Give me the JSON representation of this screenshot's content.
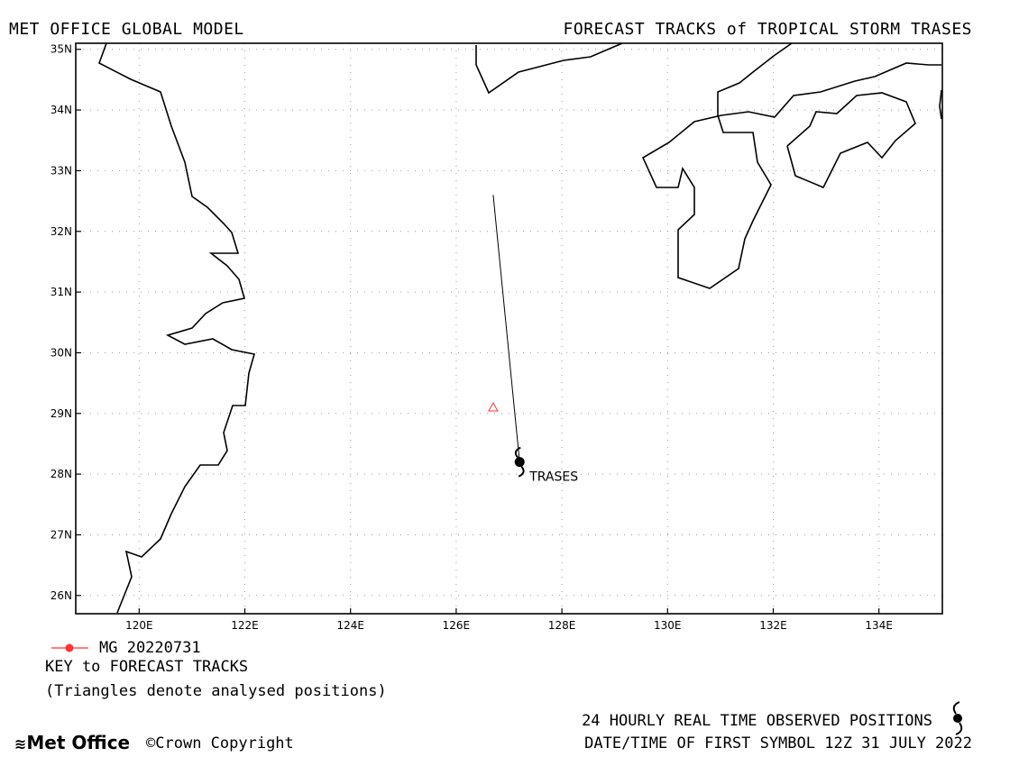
{
  "header": {
    "left": "MET OFFICE GLOBAL MODEL",
    "right": "FORECAST TRACKS of TROPICAL STORM TRASES"
  },
  "map": {
    "lon_range": [
      118.8,
      135.2
    ],
    "lat_range": [
      25.7,
      35.1
    ],
    "lat_ticks": [
      {
        "value": 26,
        "label": "26N"
      },
      {
        "value": 27,
        "label": "27N"
      },
      {
        "value": 28,
        "label": "28N"
      },
      {
        "value": 29,
        "label": "29N"
      },
      {
        "value": 30,
        "label": "30N"
      },
      {
        "value": 31,
        "label": "31N"
      },
      {
        "value": 32,
        "label": "32N"
      },
      {
        "value": 33,
        "label": "33N"
      },
      {
        "value": 34,
        "label": "34N"
      },
      {
        "value": 35,
        "label": "35N"
      }
    ],
    "lon_ticks": [
      {
        "value": 120,
        "label": "120E"
      },
      {
        "value": 122,
        "label": "122E"
      },
      {
        "value": 124,
        "label": "124E"
      },
      {
        "value": 126,
        "label": "126E"
      },
      {
        "value": 128,
        "label": "128E"
      },
      {
        "value": 130,
        "label": "130E"
      },
      {
        "value": 132,
        "label": "132E"
      },
      {
        "value": 134,
        "label": "134E"
      }
    ],
    "grid": "dotted",
    "storm": {
      "name": "TRASES",
      "lon": 127.2,
      "lat": 28.2
    },
    "forecast_track": [
      [
        127.2,
        28.2
      ],
      [
        126.7,
        32.6
      ]
    ],
    "analysed_position": {
      "lon": 126.7,
      "lat": 29.1
    },
    "track_color": "#ff3333"
  },
  "key": {
    "model_label": "MG 20220731",
    "title": "KEY to FORECAST TRACKS",
    "note": "(Triangles denote analysed positions)"
  },
  "footer": {
    "logo": "Met Office",
    "copyright": "Crown Copyright",
    "observed": "24 HOURLY REAL TIME OBSERVED POSITIONS",
    "datetime": "DATE/TIME OF FIRST SYMBOL 12Z 31 JULY 2022"
  }
}
